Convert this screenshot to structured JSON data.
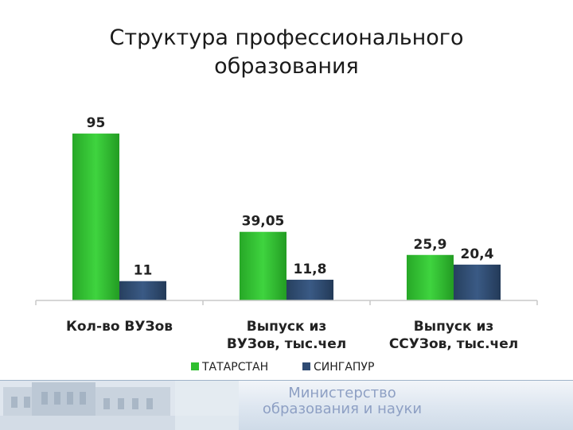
{
  "title_lines": [
    "Структура профессионального",
    "образования"
  ],
  "colors": {
    "tatarstan": "#2fbf2f",
    "singapore": "#2f4b73"
  },
  "chart_data": {
    "type": "bar",
    "title": "Структура профессионального образования",
    "categories": [
      [
        "Кол-во ВУЗов"
      ],
      [
        "Выпуск из",
        "ВУЗов, тыс.чел"
      ],
      [
        "Выпуск из",
        "ССУЗов, тыс.чел"
      ]
    ],
    "series": [
      {
        "name": "ТАТАРСТАН",
        "values": [
          95,
          39.05,
          25.9
        ],
        "labels": [
          "95",
          "39,05",
          "25,9"
        ]
      },
      {
        "name": "СИНГАПУР",
        "values": [
          11,
          11.8,
          20.4
        ],
        "labels": [
          "11",
          "11,8",
          "20,4"
        ]
      }
    ],
    "ylim": [
      0,
      100
    ],
    "grid": false,
    "legend": "bottom"
  },
  "footer": {
    "ministry_lines": [
      "Министерство",
      "образования и науки"
    ]
  }
}
